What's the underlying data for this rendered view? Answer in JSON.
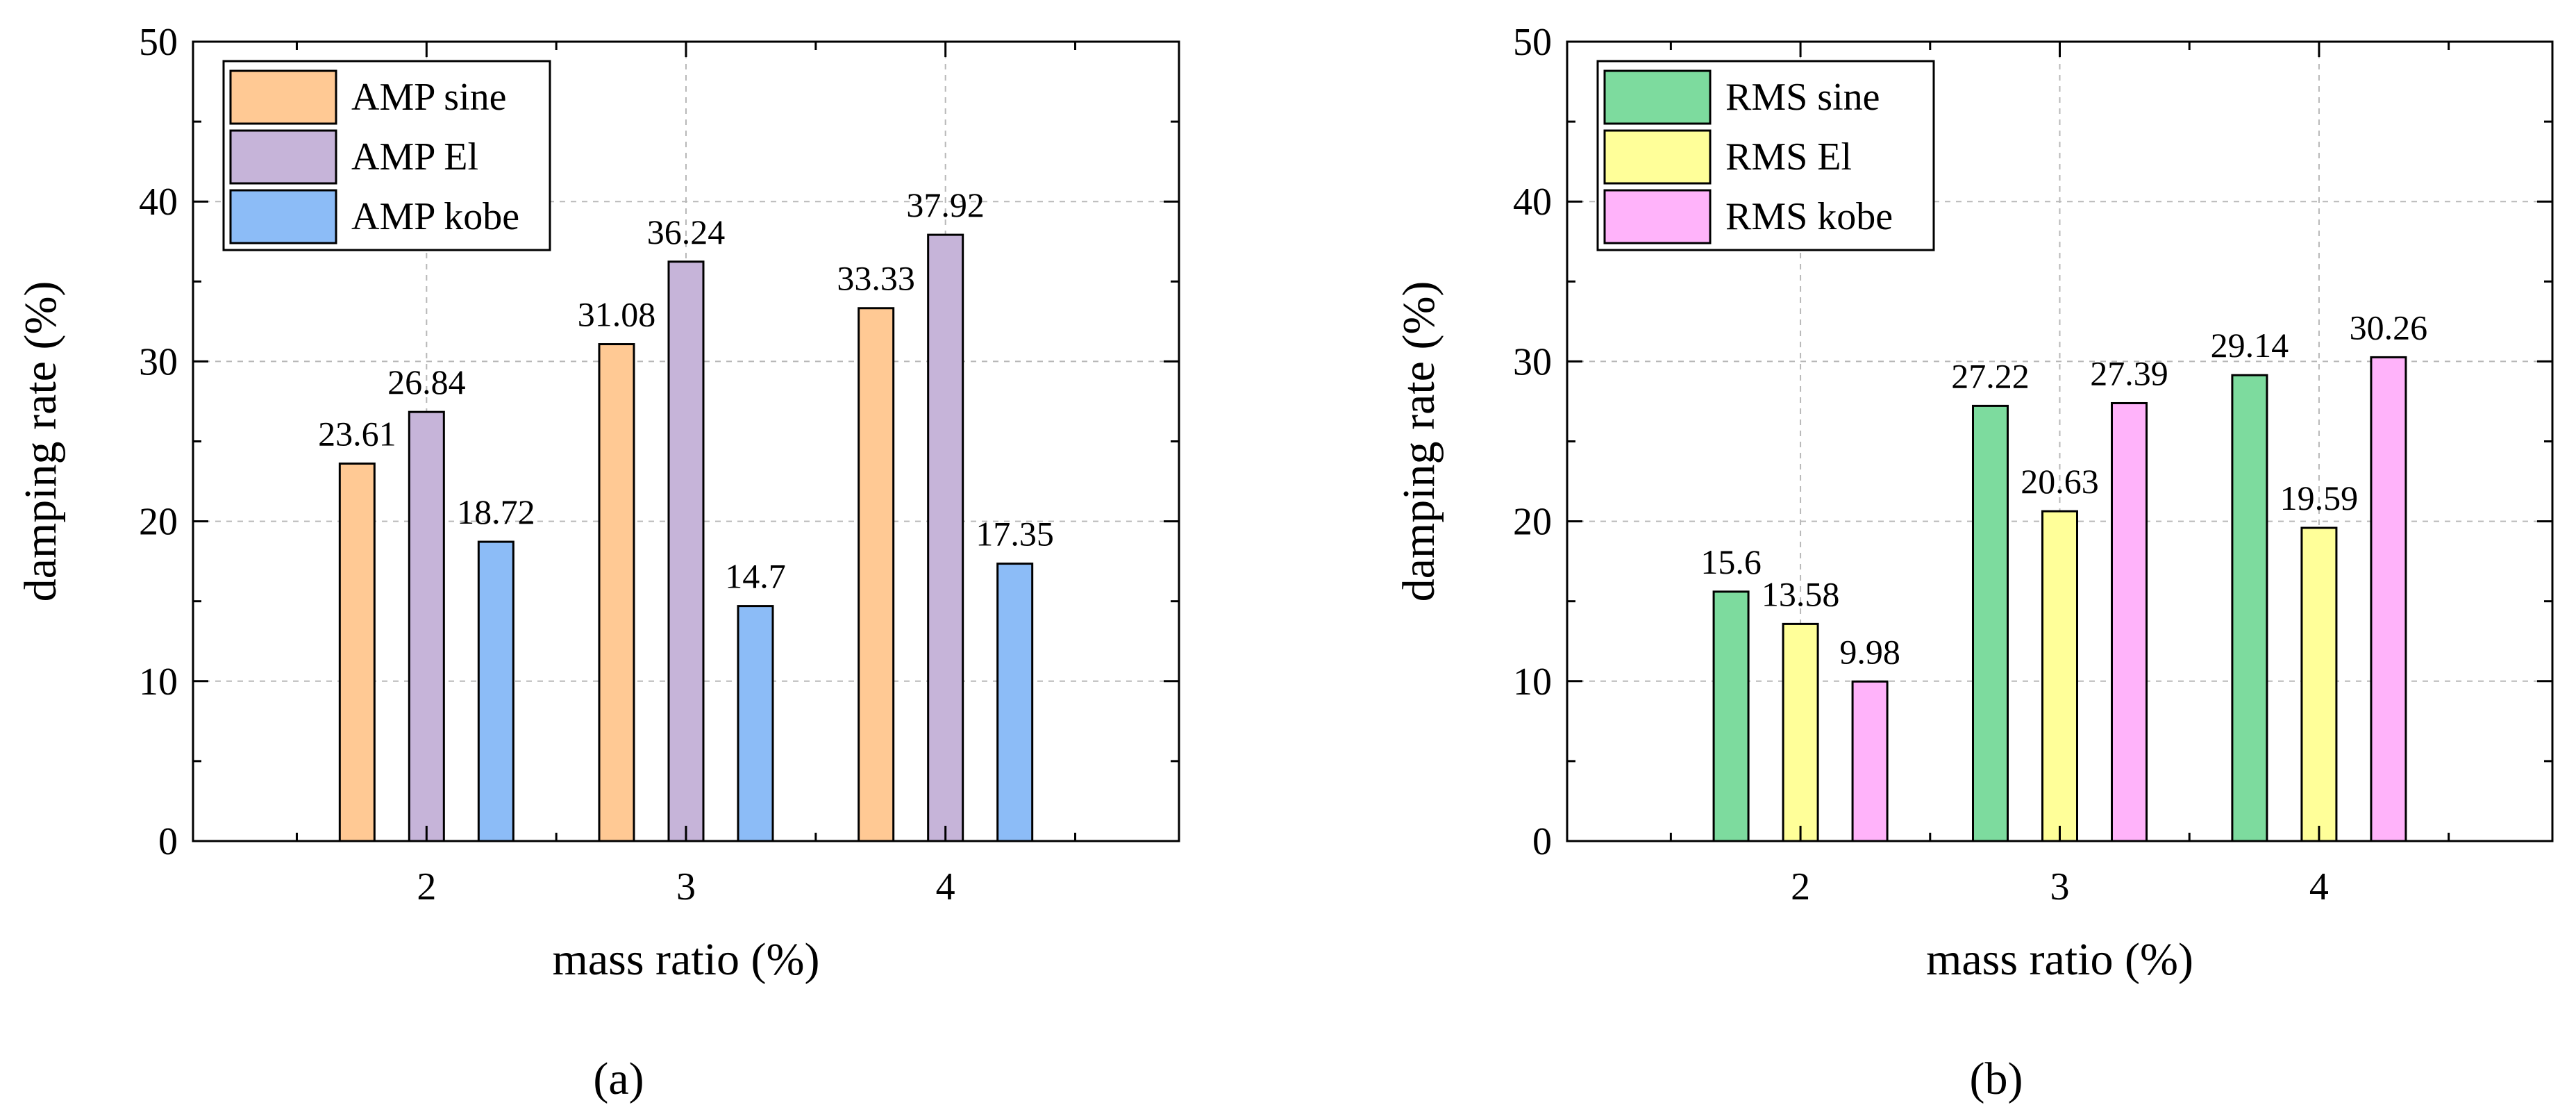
{
  "chart_data": [
    {
      "id": "a",
      "type": "bar",
      "panel_label": "(a)",
      "xlabel": "mass ratio (%)",
      "ylabel": "damping rate (%)",
      "ylim": [
        0,
        50
      ],
      "yticks": [
        "0",
        "10",
        "20",
        "30",
        "40",
        "50"
      ],
      "xlim": [
        1.1,
        4.9
      ],
      "categories": [
        "2",
        "3",
        "4"
      ],
      "grid": true,
      "legend_position": "top-left",
      "series": [
        {
          "name": "AMP sine",
          "color": "#FFC994",
          "values": [
            23.61,
            31.08,
            33.33
          ],
          "labels": [
            "23.61",
            "31.08",
            "33.33"
          ]
        },
        {
          "name": "AMP El",
          "color": "#C6B4D9",
          "values": [
            26.84,
            36.24,
            37.92
          ],
          "labels": [
            "26.84",
            "36.24",
            "37.92"
          ]
        },
        {
          "name": "AMP kobe",
          "color": "#8CBCF7",
          "values": [
            18.72,
            14.7,
            17.35
          ],
          "labels": [
            "18.72",
            "14.7",
            "17.35"
          ]
        }
      ]
    },
    {
      "id": "b",
      "type": "bar",
      "panel_label": "(b)",
      "xlabel": "mass ratio (%)",
      "ylabel": "damping rate (%)",
      "ylim": [
        0,
        50
      ],
      "yticks": [
        "0",
        "10",
        "20",
        "30",
        "40",
        "50"
      ],
      "xlim": [
        1.1,
        4.9
      ],
      "categories": [
        "2",
        "3",
        "4"
      ],
      "grid": true,
      "legend_position": "top-left",
      "series": [
        {
          "name": "RMS sine",
          "color": "#7DDB9E",
          "values": [
            15.6,
            27.22,
            29.14
          ],
          "labels": [
            "15.6",
            "27.22",
            "29.14"
          ]
        },
        {
          "name": "RMS El",
          "color": "#FFFF99",
          "values": [
            13.58,
            20.63,
            19.59
          ],
          "labels": [
            "13.58",
            "20.63",
            "19.59"
          ]
        },
        {
          "name": "RMS kobe",
          "color": "#FFB3FA",
          "values": [
            9.98,
            27.39,
            30.26
          ],
          "labels": [
            "9.98",
            "27.39",
            "30.26"
          ]
        }
      ]
    }
  ]
}
